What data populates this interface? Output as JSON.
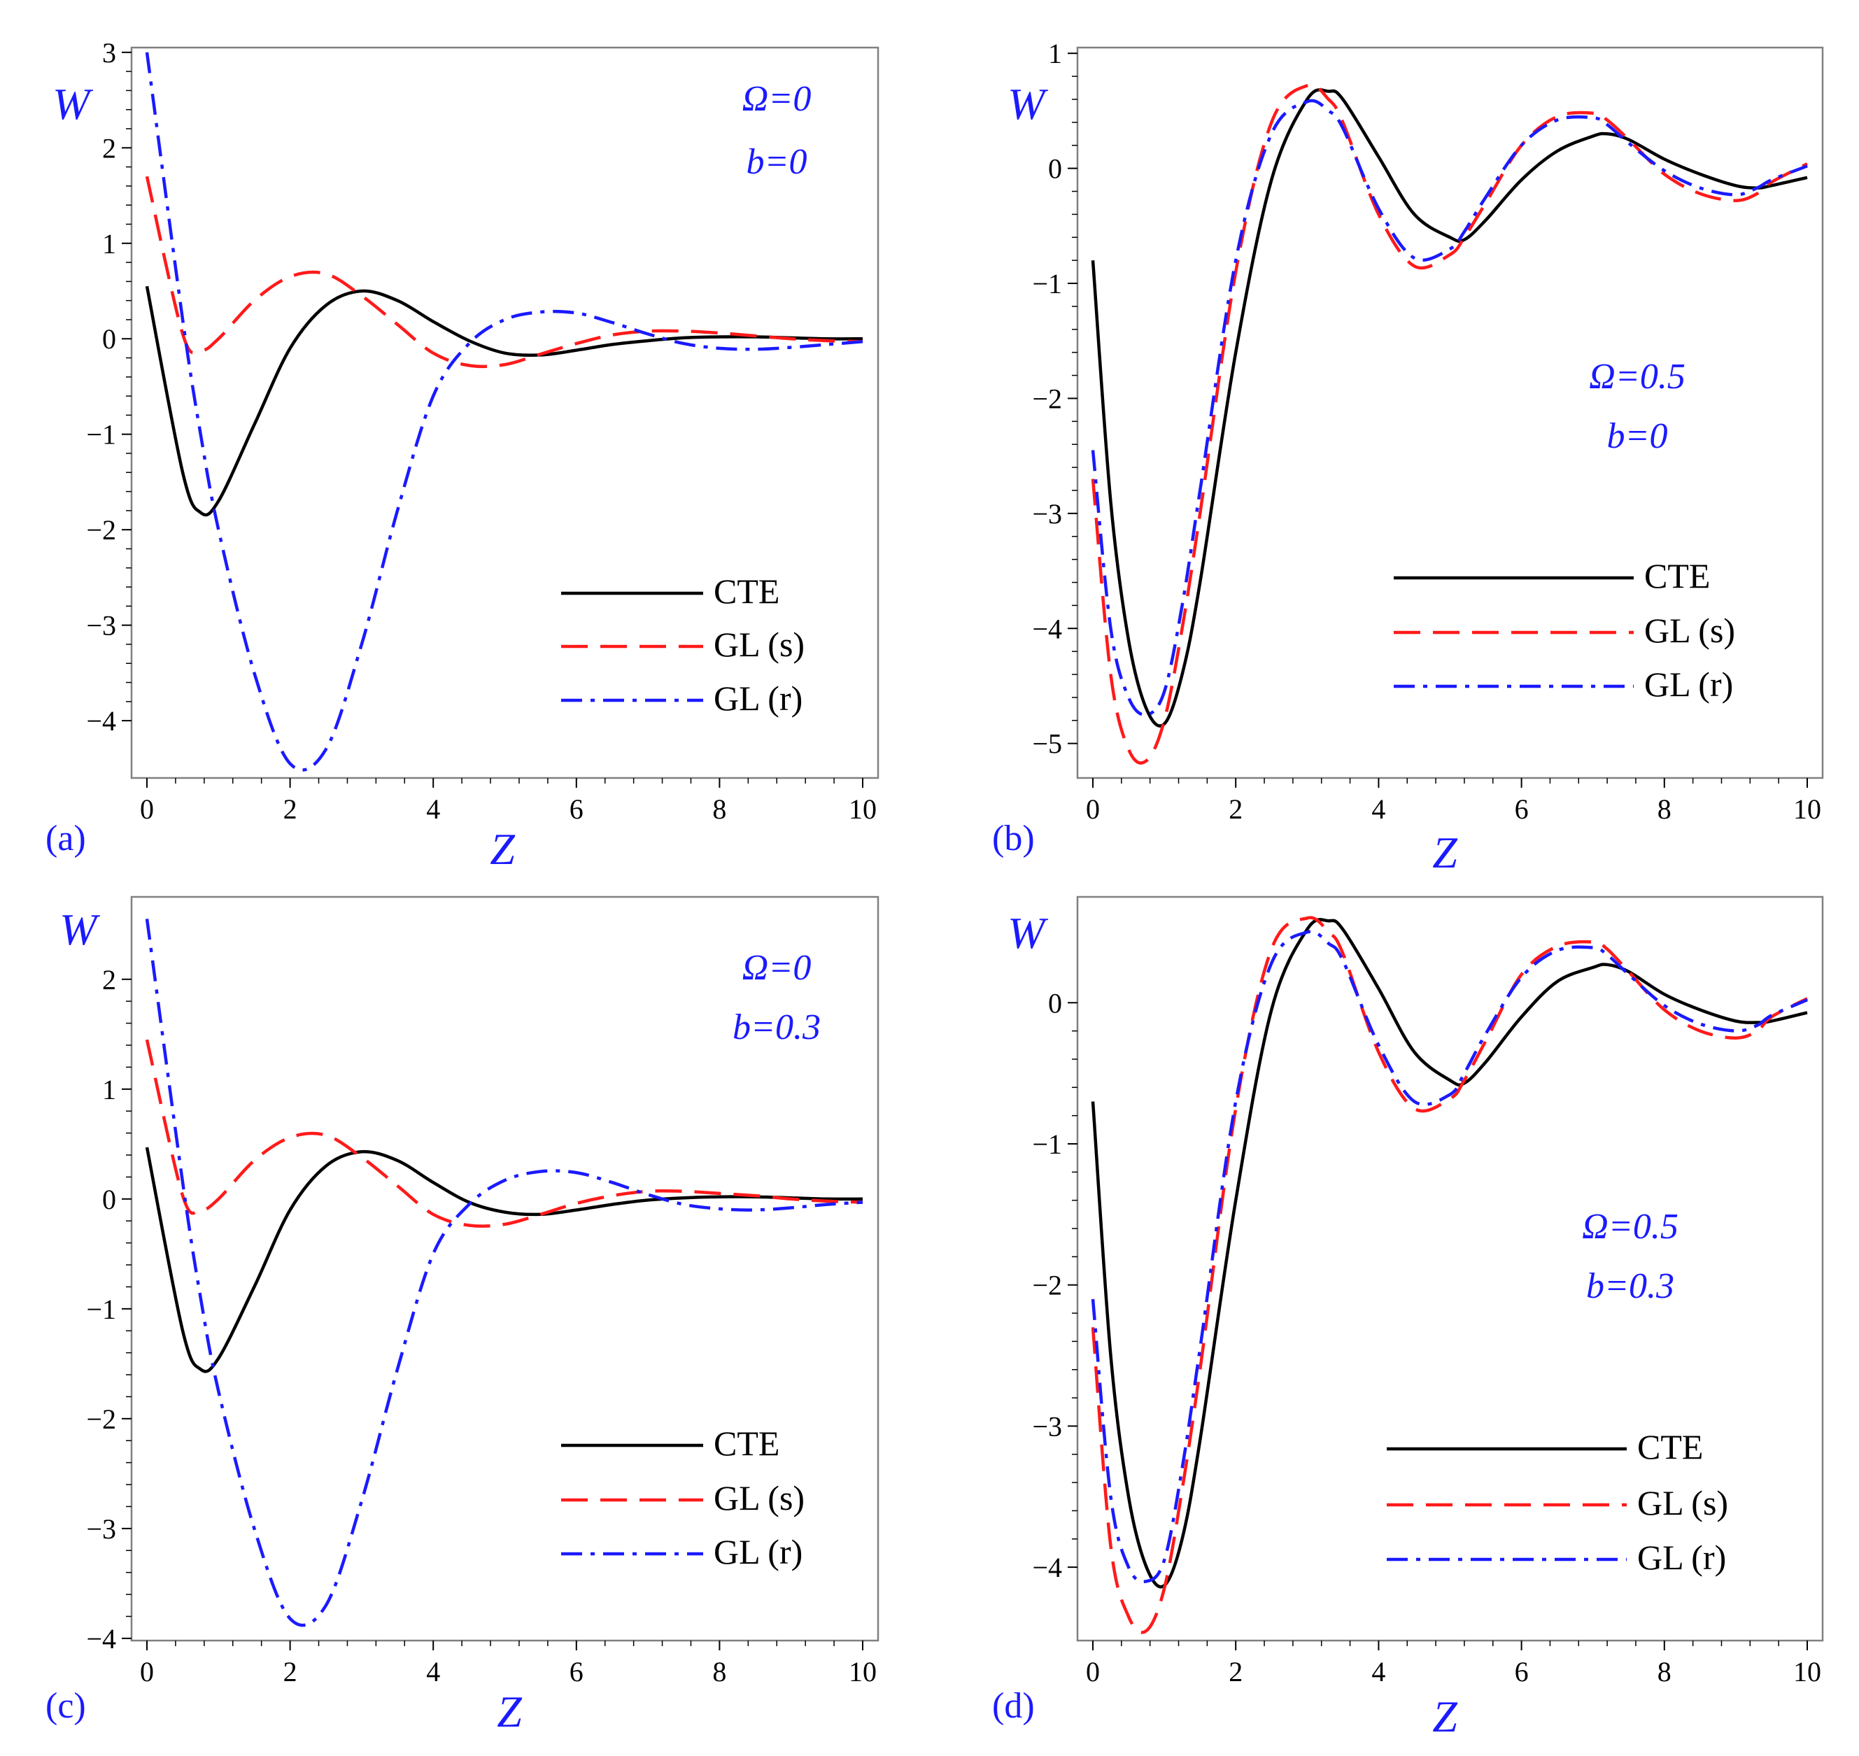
{
  "chart_data": [
    {
      "type": "line",
      "panel_label": "(a)",
      "xlabel": "Z",
      "ylabel": "W",
      "params": [
        "Ω=0",
        "b=0"
      ],
      "xlim": [
        0,
        10
      ],
      "ylim": [
        -4.6,
        3.05
      ],
      "xticks": [
        0,
        2,
        4,
        6,
        8,
        10
      ],
      "xtick_labels": [
        "0",
        "2",
        "4",
        "6",
        "8",
        "10"
      ],
      "yticks": [
        -4,
        -3,
        -2,
        -1,
        0,
        1,
        2,
        3
      ],
      "ytick_labels": [
        "−4",
        "−3",
        "−2",
        "−1",
        "0",
        "1",
        "2",
        "3"
      ],
      "legend": [
        "CTE",
        "GL (s)",
        "GL (r)"
      ],
      "x": [
        0,
        0.5,
        0.75,
        1,
        1.5,
        2,
        2.5,
        3,
        3.5,
        4,
        4.5,
        5,
        5.5,
        6,
        6.5,
        7,
        7.5,
        8,
        8.5,
        9,
        9.5,
        10
      ],
      "series": [
        {
          "name": "CTE",
          "color": "#000000",
          "dash": "solid",
          "values": [
            0.55,
            -1.4,
            -1.82,
            -1.7,
            -0.9,
            -0.1,
            0.35,
            0.5,
            0.4,
            0.18,
            -0.02,
            -0.15,
            -0.17,
            -0.12,
            -0.06,
            -0.02,
            0.01,
            0.02,
            0.02,
            0.01,
            0.0,
            0.0
          ]
        },
        {
          "name": "GL (s)",
          "color": "#ff1a1a",
          "dash": "long-dash",
          "values": [
            1.7,
            0.05,
            -0.12,
            0.0,
            0.4,
            0.65,
            0.68,
            0.45,
            0.15,
            -0.15,
            -0.28,
            -0.27,
            -0.16,
            -0.05,
            0.04,
            0.08,
            0.08,
            0.06,
            0.03,
            0.0,
            -0.02,
            -0.03
          ]
        },
        {
          "name": "GL (r)",
          "color": "#1a1aff",
          "dash": "dash-dot",
          "values": [
            3.0,
            0.2,
            -1.0,
            -2.0,
            -3.5,
            -4.45,
            -4.3,
            -3.2,
            -1.8,
            -0.6,
            -0.05,
            0.2,
            0.28,
            0.27,
            0.17,
            0.05,
            -0.05,
            -0.1,
            -0.11,
            -0.09,
            -0.06,
            -0.03
          ]
        }
      ]
    },
    {
      "type": "line",
      "panel_label": "(b)",
      "xlabel": "Z",
      "ylabel": "W",
      "params": [
        "Ω=0.5",
        "b=0"
      ],
      "xlim": [
        0,
        10
      ],
      "ylim": [
        -5.3,
        1.05
      ],
      "xticks": [
        0,
        2,
        4,
        6,
        8,
        10
      ],
      "xtick_labels": [
        "0",
        "2",
        "4",
        "6",
        "8",
        "10"
      ],
      "yticks": [
        -5,
        -4,
        -3,
        -2,
        -1,
        0,
        1
      ],
      "ytick_labels": [
        "−5",
        "−4",
        "−3",
        "−2",
        "−1",
        "0",
        "1"
      ],
      "legend": [
        "CTE",
        "GL (s)",
        "GL (r)"
      ],
      "x": [
        0,
        0.25,
        0.5,
        0.75,
        1,
        1.25,
        1.5,
        2,
        2.5,
        3,
        3.3,
        3.5,
        4,
        4.5,
        5,
        5.2,
        5.5,
        6,
        6.5,
        7,
        7.2,
        7.5,
        8,
        8.5,
        9,
        9.3,
        9.5,
        10
      ],
      "series": [
        {
          "name": "CTE",
          "color": "#000000",
          "dash": "solid",
          "values": [
            -0.8,
            -2.9,
            -4.1,
            -4.7,
            -4.83,
            -4.4,
            -3.6,
            -1.6,
            -0.1,
            0.6,
            0.67,
            0.6,
            0.1,
            -0.4,
            -0.6,
            -0.62,
            -0.45,
            -0.1,
            0.15,
            0.28,
            0.3,
            0.25,
            0.08,
            -0.05,
            -0.15,
            -0.17,
            -0.15,
            -0.08
          ]
        },
        {
          "name": "GL (s)",
          "color": "#ff1a1a",
          "dash": "long-dash",
          "values": [
            -2.7,
            -4.4,
            -5.05,
            -5.15,
            -4.8,
            -4.0,
            -3.0,
            -0.9,
            0.4,
            0.72,
            0.6,
            0.4,
            -0.4,
            -0.85,
            -0.75,
            -0.6,
            -0.3,
            0.2,
            0.45,
            0.48,
            0.42,
            0.25,
            -0.05,
            -0.22,
            -0.28,
            -0.22,
            -0.12,
            0.04
          ]
        },
        {
          "name": "GL (r)",
          "color": "#1a1aff",
          "dash": "dash-dot",
          "values": [
            -2.45,
            -4.0,
            -4.6,
            -4.75,
            -4.55,
            -3.8,
            -2.8,
            -0.8,
            0.3,
            0.58,
            0.5,
            0.35,
            -0.35,
            -0.78,
            -0.7,
            -0.55,
            -0.25,
            0.2,
            0.42,
            0.44,
            0.38,
            0.22,
            -0.02,
            -0.17,
            -0.23,
            -0.17,
            -0.1,
            0.02
          ]
        }
      ]
    },
    {
      "type": "line",
      "panel_label": "(c)",
      "xlabel": "Z",
      "ylabel": "W",
      "params": [
        "Ω=0",
        "b=0.3"
      ],
      "xlim": [
        0,
        10
      ],
      "ylim": [
        -4.02,
        2.75
      ],
      "xticks": [
        0,
        2,
        4,
        6,
        8,
        10
      ],
      "xtick_labels": [
        "0",
        "2",
        "4",
        "6",
        "8",
        "10"
      ],
      "yticks": [
        -4,
        -3,
        -2,
        -1,
        0,
        1,
        2
      ],
      "ytick_labels": [
        "−4",
        "−3",
        "−2",
        "−1",
        "0",
        "1",
        "2"
      ],
      "legend": [
        "CTE",
        "GL (s)",
        "GL (r)"
      ],
      "x": [
        0,
        0.5,
        0.75,
        1,
        1.5,
        2,
        2.5,
        3,
        3.5,
        4,
        4.5,
        5,
        5.5,
        6,
        6.5,
        7,
        7.5,
        8,
        8.5,
        9,
        9.5,
        10
      ],
      "series": [
        {
          "name": "CTE",
          "color": "#000000",
          "dash": "solid",
          "values": [
            0.47,
            -1.2,
            -1.55,
            -1.45,
            -0.8,
            -0.1,
            0.3,
            0.43,
            0.35,
            0.15,
            -0.03,
            -0.12,
            -0.14,
            -0.1,
            -0.05,
            -0.01,
            0.01,
            0.02,
            0.02,
            0.01,
            0.0,
            0.0
          ]
        },
        {
          "name": "GL (s)",
          "color": "#ff1a1a",
          "dash": "long-dash",
          "values": [
            1.45,
            0.03,
            -0.1,
            0.0,
            0.35,
            0.56,
            0.58,
            0.38,
            0.12,
            -0.14,
            -0.24,
            -0.23,
            -0.14,
            -0.04,
            0.03,
            0.07,
            0.07,
            0.05,
            0.03,
            0.0,
            -0.02,
            -0.03
          ]
        },
        {
          "name": "GL (r)",
          "color": "#1a1aff",
          "dash": "dash-dot",
          "values": [
            2.55,
            0.15,
            -0.9,
            -1.75,
            -3.0,
            -3.82,
            -3.7,
            -2.75,
            -1.55,
            -0.5,
            -0.05,
            0.17,
            0.25,
            0.24,
            0.15,
            0.04,
            -0.05,
            -0.09,
            -0.1,
            -0.08,
            -0.05,
            -0.03
          ]
        }
      ]
    },
    {
      "type": "line",
      "panel_label": "(d)",
      "xlabel": "Z",
      "ylabel": "W",
      "params": [
        "Ω=0.5",
        "b=0.3"
      ],
      "xlim": [
        0,
        10
      ],
      "ylim": [
        -4.52,
        0.75
      ],
      "xticks": [
        0,
        2,
        4,
        6,
        8,
        10
      ],
      "xtick_labels": [
        "0",
        "2",
        "4",
        "6",
        "8",
        "10"
      ],
      "yticks": [
        -4,
        -3,
        -2,
        -1,
        0
      ],
      "ytick_labels": [
        "−4",
        "−3",
        "−2",
        "−1",
        "0"
      ],
      "legend": [
        "CTE",
        "GL (s)",
        "GL (r)"
      ],
      "x": [
        0,
        0.25,
        0.5,
        0.75,
        1,
        1.25,
        1.5,
        2,
        2.5,
        3,
        3.3,
        3.5,
        4,
        4.5,
        5,
        5.2,
        5.5,
        6,
        6.5,
        7,
        7.2,
        7.5,
        8,
        8.5,
        9,
        9.3,
        9.5,
        10
      ],
      "series": [
        {
          "name": "CTE",
          "color": "#000000",
          "dash": "solid",
          "values": [
            -0.7,
            -2.5,
            -3.5,
            -4.0,
            -4.13,
            -3.8,
            -3.1,
            -1.4,
            -0.05,
            0.52,
            0.58,
            0.52,
            0.1,
            -0.35,
            -0.55,
            -0.57,
            -0.42,
            -0.1,
            0.15,
            0.25,
            0.27,
            0.22,
            0.06,
            -0.05,
            -0.13,
            -0.14,
            -0.13,
            -0.07
          ]
        },
        {
          "name": "GL (s)",
          "color": "#ff1a1a",
          "dash": "long-dash",
          "values": [
            -2.3,
            -3.85,
            -4.35,
            -4.45,
            -4.15,
            -3.45,
            -2.6,
            -0.75,
            0.38,
            0.6,
            0.5,
            0.35,
            -0.35,
            -0.75,
            -0.68,
            -0.55,
            -0.27,
            0.2,
            0.4,
            0.43,
            0.38,
            0.22,
            -0.05,
            -0.2,
            -0.25,
            -0.2,
            -0.1,
            0.03
          ]
        },
        {
          "name": "GL (r)",
          "color": "#1a1aff",
          "dash": "dash-dot",
          "values": [
            -2.1,
            -3.5,
            -4.0,
            -4.1,
            -3.95,
            -3.3,
            -2.45,
            -0.7,
            0.28,
            0.5,
            0.42,
            0.3,
            -0.3,
            -0.7,
            -0.65,
            -0.5,
            -0.22,
            0.18,
            0.37,
            0.39,
            0.34,
            0.2,
            -0.02,
            -0.15,
            -0.2,
            -0.16,
            -0.09,
            0.02
          ]
        }
      ]
    }
  ]
}
